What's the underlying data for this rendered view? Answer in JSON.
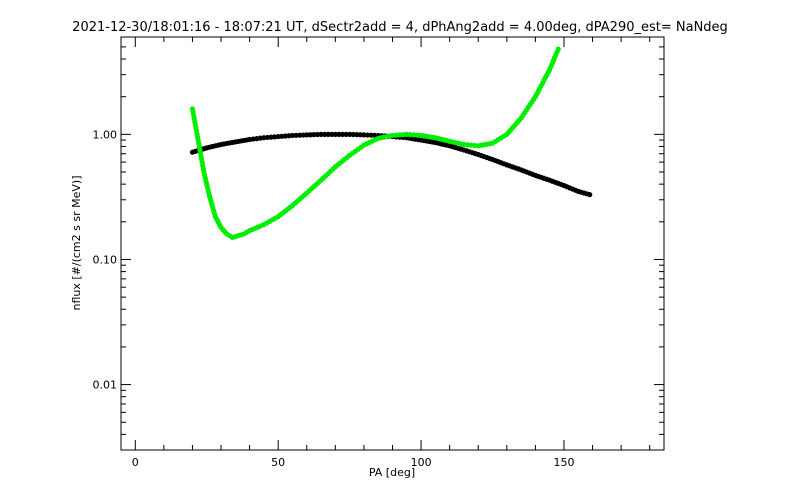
{
  "chart_data": {
    "type": "scatter",
    "title": "2021-12-30/18:01:16 - 18:07:21 UT, dSectr2add = 4, dPhAng2add = 4.00deg, dPA290_est=    NaNdeg",
    "xlabel": "PA [deg]",
    "ylabel": "nflux [#/(cm2 s sr MeV)]",
    "xlim": [
      -5,
      185
    ],
    "ylim": [
      0.003,
      6.0
    ],
    "yscale": "log",
    "grid": false,
    "x_ticks": [
      {
        "value": 0,
        "label": "0"
      },
      {
        "value": 50,
        "label": "50"
      },
      {
        "value": 100,
        "label": "100"
      },
      {
        "value": 150,
        "label": "150"
      }
    ],
    "y_ticks": [
      {
        "value": 0.01,
        "label": "0.01"
      },
      {
        "value": 0.1,
        "label": "0.10"
      },
      {
        "value": 1.0,
        "label": "1.00"
      }
    ],
    "series": [
      {
        "color": "#000000",
        "x": [
          20,
          25,
          30,
          35,
          40,
          45,
          50,
          55,
          60,
          65,
          70,
          75,
          80,
          85,
          90,
          95,
          100,
          105,
          110,
          115,
          120,
          125,
          130,
          135,
          140,
          145,
          150,
          155,
          159
        ],
        "y": [
          0.72,
          0.78,
          0.83,
          0.87,
          0.91,
          0.94,
          0.96,
          0.98,
          0.99,
          1.0,
          1.0,
          1.0,
          0.99,
          0.98,
          0.96,
          0.94,
          0.9,
          0.86,
          0.81,
          0.75,
          0.69,
          0.63,
          0.57,
          0.52,
          0.47,
          0.43,
          0.39,
          0.35,
          0.33
        ]
      },
      {
        "color": "#00ee00",
        "x": [
          20,
          22,
          24,
          26,
          28,
          30,
          32,
          34,
          36,
          38,
          40,
          45,
          50,
          55,
          60,
          65,
          70,
          75,
          80,
          85,
          90,
          95,
          100,
          105,
          110,
          115,
          120,
          125,
          130,
          135,
          140,
          145,
          148
        ],
        "y": [
          1.6,
          0.9,
          0.5,
          0.32,
          0.22,
          0.18,
          0.16,
          0.15,
          0.155,
          0.16,
          0.17,
          0.19,
          0.22,
          0.27,
          0.34,
          0.43,
          0.55,
          0.68,
          0.82,
          0.93,
          0.98,
          1.0,
          0.98,
          0.94,
          0.88,
          0.83,
          0.81,
          0.85,
          1.0,
          1.35,
          2.0,
          3.3,
          4.8
        ]
      }
    ]
  }
}
